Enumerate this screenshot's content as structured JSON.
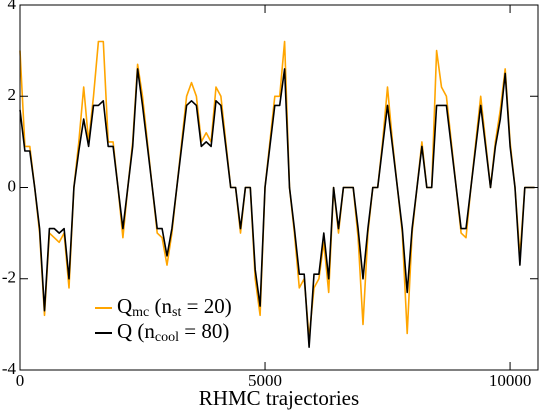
{
  "chart_data": {
    "type": "line",
    "xlabel": "RHMC trajectories",
    "x": [
      0,
      100,
      200,
      300,
      400,
      500,
      600,
      700,
      800,
      900,
      1000,
      1100,
      1200,
      1300,
      1400,
      1500,
      1600,
      1700,
      1800,
      1900,
      2000,
      2100,
      2200,
      2300,
      2400,
      2500,
      2600,
      2700,
      2800,
      2900,
      3000,
      3100,
      3200,
      3300,
      3400,
      3500,
      3600,
      3700,
      3800,
      3900,
      4000,
      4100,
      4200,
      4300,
      4400,
      4500,
      4600,
      4700,
      4800,
      4900,
      5000,
      5100,
      5200,
      5300,
      5400,
      5500,
      5600,
      5700,
      5800,
      5900,
      6000,
      6100,
      6200,
      6300,
      6400,
      6500,
      6600,
      6700,
      6800,
      6900,
      7000,
      7100,
      7200,
      7300,
      7400,
      7500,
      7600,
      7700,
      7800,
      7900,
      8000,
      8100,
      8200,
      8300,
      8400,
      8500,
      8600,
      8700,
      8800,
      8900,
      9000,
      9100,
      9200,
      9300,
      9400,
      9500,
      9600,
      9700,
      9800,
      9900,
      10000,
      10100,
      10200,
      10300,
      10400,
      10500
    ],
    "series": [
      {
        "legend_label": [
          {
            "text": "Q"
          },
          {
            "text": "mc",
            "sub": true
          },
          {
            "text": " (n"
          },
          {
            "text": "st",
            "sub": true
          },
          {
            "text": " = 20)"
          }
        ],
        "color": "#ffa500",
        "values": [
          3.0,
          0.9,
          0.9,
          0,
          -1.0,
          -2.8,
          -1.0,
          -1.1,
          -1.2,
          -1.0,
          -2.2,
          0,
          1.0,
          2.2,
          1.0,
          2.0,
          3.2,
          3.2,
          1.0,
          1.0,
          0,
          -1.1,
          0,
          1.0,
          2.7,
          2.0,
          1.0,
          0,
          -1.0,
          -1.1,
          -1.7,
          -1.0,
          0,
          1.0,
          2.0,
          2.3,
          2.0,
          1.0,
          1.2,
          1.0,
          2.2,
          2.0,
          1.0,
          0,
          0,
          -1.0,
          0,
          0,
          -2.0,
          -2.8,
          0,
          1.0,
          2.0,
          2.0,
          3.2,
          0,
          -1.0,
          -2.2,
          -2.0,
          -3.3,
          -2.2,
          -2.0,
          -1.2,
          -2.3,
          0,
          -1.0,
          0,
          0,
          0,
          -1.1,
          -3.0,
          -1.0,
          0,
          0,
          1.0,
          2.2,
          1.0,
          0,
          -1.0,
          -3.2,
          -1.0,
          0,
          1.0,
          0,
          0,
          3.0,
          2.2,
          2.0,
          1.0,
          0,
          -1.0,
          -1.1,
          0,
          1.0,
          2.0,
          1.0,
          0,
          1.0,
          1.7,
          2.6,
          1.0,
          0,
          -1.5,
          0,
          0,
          0
        ]
      },
      {
        "legend_label": [
          {
            "text": "Q  (n"
          },
          {
            "text": "cool",
            "sub": true
          },
          {
            "text": " = 80)"
          }
        ],
        "color": "#000000",
        "values": [
          1.7,
          0.8,
          0.8,
          0,
          -0.9,
          -2.7,
          -0.9,
          -0.9,
          -1.0,
          -0.9,
          -2.0,
          0,
          0.8,
          1.5,
          0.9,
          1.8,
          1.8,
          1.9,
          0.9,
          0.9,
          0,
          -0.9,
          0,
          0.9,
          2.6,
          1.8,
          0.9,
          0,
          -0.9,
          -0.9,
          -1.5,
          -0.9,
          0,
          0.9,
          1.8,
          1.9,
          1.8,
          0.9,
          1.0,
          0.9,
          1.9,
          1.8,
          0.9,
          0,
          0,
          -0.9,
          0,
          0,
          -1.8,
          -2.6,
          0,
          0.9,
          1.8,
          1.8,
          2.6,
          0,
          -0.9,
          -1.9,
          -1.9,
          -3.5,
          -1.9,
          -1.9,
          -1.0,
          -2.0,
          0,
          -0.9,
          0,
          0,
          0,
          -0.9,
          -2.0,
          -0.9,
          0,
          0,
          0.9,
          1.8,
          0.9,
          0,
          -0.9,
          -2.3,
          -0.9,
          0,
          0.9,
          0,
          0,
          1.8,
          1.8,
          1.8,
          0.9,
          0,
          -0.9,
          -0.9,
          0,
          0.9,
          1.8,
          0.9,
          0,
          0.9,
          1.5,
          2.5,
          0.9,
          0,
          -1.7,
          0,
          0,
          0
        ]
      }
    ],
    "xlim": [
      0,
      10570
    ],
    "xticks": [
      0,
      5000,
      10000
    ],
    "ylim": [
      -4,
      4
    ],
    "yticks": [
      -4,
      -2,
      0,
      2,
      4
    ]
  }
}
